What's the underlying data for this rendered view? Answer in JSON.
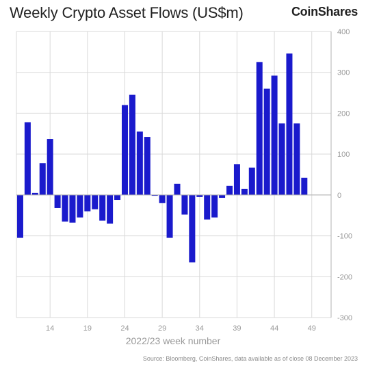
{
  "header": {
    "title": "Weekly Crypto Asset Flows (US$m)",
    "brand": "CoinShares"
  },
  "footer": {
    "source": "Source: Bloomberg, CoinShares, data available as of close 08 December 2023"
  },
  "chart_data": {
    "type": "bar",
    "title": "Weekly Crypto Asset Flows (US$m)",
    "xlabel": "2022/23 week number",
    "ylabel": "",
    "ylim": [
      -300,
      400
    ],
    "y_ticks": [
      400,
      300,
      200,
      100,
      0,
      -100,
      -200,
      -300
    ],
    "x_tick_labels": [
      "14",
      "19",
      "24",
      "29",
      "34",
      "39",
      "44",
      "49"
    ],
    "grid": true,
    "colors": {
      "bar": "#1a1acc",
      "grid": "#d9d9d9",
      "axis": "#b0b0b0"
    },
    "categories": [
      "10",
      "11",
      "12",
      "13",
      "14",
      "15",
      "16",
      "17",
      "18",
      "19",
      "20",
      "21",
      "22",
      "23",
      "24",
      "25",
      "26",
      "27",
      "28",
      "29",
      "30",
      "31",
      "32",
      "33",
      "34",
      "35",
      "36",
      "37",
      "38",
      "39",
      "40",
      "41",
      "42",
      "43",
      "44",
      "45",
      "46",
      "47",
      "48",
      "49"
    ],
    "values": [
      -105,
      178,
      5,
      78,
      137,
      -32,
      -65,
      -68,
      -55,
      -40,
      -35,
      -63,
      -70,
      -12,
      220,
      245,
      155,
      142,
      -2,
      -20,
      -105,
      27,
      -48,
      -165,
      -5,
      -60,
      -55,
      -7,
      22,
      75,
      15,
      67,
      325,
      260,
      292,
      175,
      346,
      175,
      42,
      0
    ]
  }
}
